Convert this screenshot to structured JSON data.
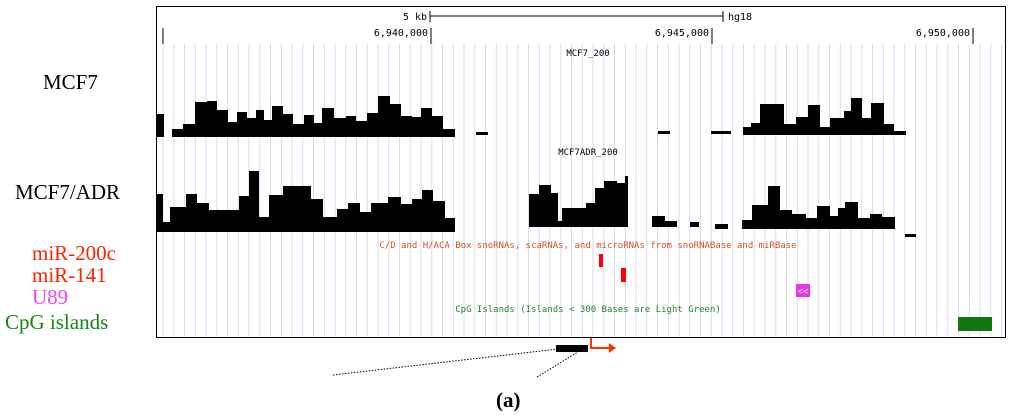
{
  "scale": {
    "length_label": "5 kb",
    "assembly": "hg18"
  },
  "ruler": {
    "ticks": [
      "6,940,000",
      "6,945,000",
      "6,950,000"
    ]
  },
  "tracks": [
    {
      "id": "mcf7",
      "label": "MCF7",
      "title": "MCF7_200"
    },
    {
      "id": "mcf7adr",
      "label": "MCF7/ADR",
      "title": "MCF7ADR_200"
    }
  ],
  "annotations": {
    "snorna_title": "C/D and H/ACA Box snoRNAs, scaRNAs, and microRNAs from snoRNABase and miRBase",
    "cpg_title": "CpG Islands (Islands < 300 Bases are Light Green)",
    "u89_glyph": "<<"
  },
  "feature_labels": [
    "miR-200c",
    "miR-141",
    "U89",
    "CpG islands"
  ],
  "colors": {
    "mir": "#ff2200",
    "u89": "#ee44ee",
    "cpg": "#118811",
    "signal": "#000000",
    "grid": "#d8d8f0"
  },
  "caption": "(a)"
}
